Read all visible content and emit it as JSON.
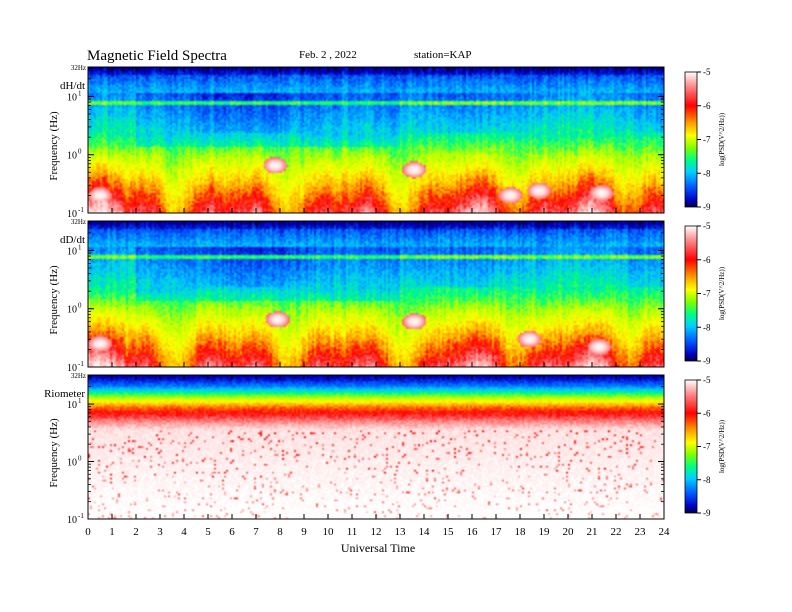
{
  "header": {
    "title": "Magnetic  Field  Spectra",
    "date": "Feb. 2  , 2022",
    "station": "station=KAP"
  },
  "colors": {
    "scale": [
      "#000040",
      "#0000c8",
      "#0064ff",
      "#00c8ff",
      "#00ff78",
      "#b4ff00",
      "#ffff00",
      "#ffa000",
      "#ff0000",
      "#ff8080",
      "#ffe0e0",
      "#ffffff"
    ],
    "background": "#ffffff"
  },
  "chart_data": {
    "type": "heatmap",
    "xlabel": "Universal Time",
    "xlim": [
      0,
      24
    ],
    "x_ticks": [
      "0",
      "1",
      "2",
      "3",
      "4",
      "5",
      "6",
      "7",
      "8",
      "9",
      "10",
      "11",
      "12",
      "13",
      "14",
      "15",
      "16",
      "17",
      "18",
      "19",
      "20",
      "21",
      "22",
      "23",
      "24"
    ],
    "y_scale": "log",
    "colorbar": {
      "label": "log(PSD(V^2/Hz))",
      "range": [
        -9,
        -5
      ],
      "ticks": [
        "-5",
        "-6",
        "-7",
        "-8",
        "-9"
      ]
    },
    "panels": [
      {
        "name": "dH/dt",
        "ylabel": "Frequency  (Hz)",
        "top_label": "32Hz",
        "y_ticks": [
          {
            "base": "10",
            "exp": "1"
          },
          {
            "base": "10",
            "exp": "0"
          },
          {
            "base": "10",
            "exp": "-1"
          }
        ],
        "ylim_hz": [
          0.1,
          32
        ],
        "white_patches": [
          {
            "t": 0.5,
            "f": 0.2
          },
          {
            "t": 7.8,
            "f": 0.65
          },
          {
            "t": 13.6,
            "f": 0.55
          },
          {
            "t": 17.6,
            "f": 0.2
          },
          {
            "t": 18.8,
            "f": 0.24
          },
          {
            "t": 21.4,
            "f": 0.22
          }
        ]
      },
      {
        "name": "dD/dt",
        "ylabel": "Frequency  (Hz)",
        "top_label": "32Hz",
        "y_ticks": [
          {
            "base": "10",
            "exp": "1"
          },
          {
            "base": "10",
            "exp": "0"
          },
          {
            "base": "10",
            "exp": "-1"
          }
        ],
        "ylim_hz": [
          0.1,
          32
        ],
        "white_patches": [
          {
            "t": 0.5,
            "f": 0.25
          },
          {
            "t": 7.9,
            "f": 0.65
          },
          {
            "t": 13.6,
            "f": 0.6
          },
          {
            "t": 18.4,
            "f": 0.3
          },
          {
            "t": 21.3,
            "f": 0.22
          }
        ]
      },
      {
        "name": "Riometer",
        "ylabel": "Frequency  (Hz)",
        "top_label": "32Hz",
        "y_ticks": [
          {
            "base": "10",
            "exp": "1"
          },
          {
            "base": "10",
            "exp": "0"
          },
          {
            "base": "10",
            "exp": "-1"
          }
        ],
        "ylim_hz": [
          0.1,
          32
        ],
        "white_patches": []
      }
    ]
  }
}
